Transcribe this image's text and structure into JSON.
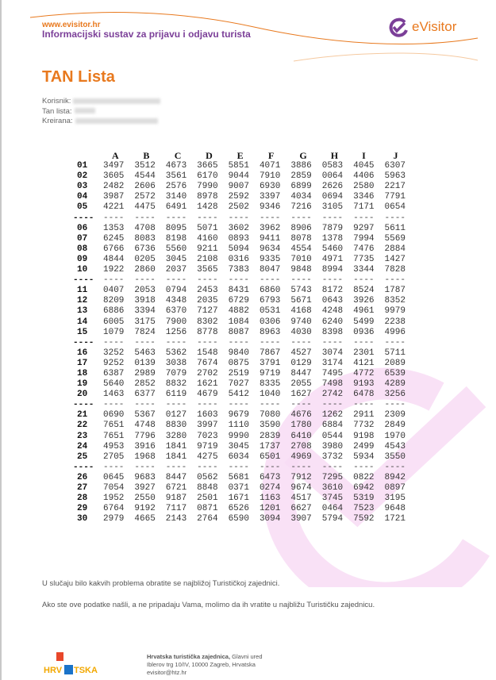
{
  "header": {
    "site": "www.evisitor.hr",
    "subtitle": "Informacijski sustav za prijavu i odjavu turista",
    "logo_text": "eVisitor"
  },
  "title": "TAN Lista",
  "meta": {
    "korisnik_label": "Korisnik:",
    "tan_lista_label": "Tan lista:",
    "kreirana_label": "Kreirana:"
  },
  "table": {
    "columns": [
      "A",
      "B",
      "C",
      "D",
      "E",
      "F",
      "G",
      "H",
      "I",
      "J"
    ],
    "groups": [
      [
        [
          "01",
          [
            "3497",
            "3512",
            "4673",
            "3665",
            "5851",
            "4071",
            "3886",
            "0583",
            "4045",
            "6307"
          ]
        ],
        [
          "02",
          [
            "3605",
            "4544",
            "3561",
            "6170",
            "9044",
            "7910",
            "2859",
            "0064",
            "4406",
            "5963"
          ]
        ],
        [
          "03",
          [
            "2482",
            "2606",
            "2576",
            "7990",
            "9007",
            "6930",
            "6899",
            "2626",
            "2580",
            "2217"
          ]
        ],
        [
          "04",
          [
            "3987",
            "2572",
            "3140",
            "8978",
            "2592",
            "3397",
            "4034",
            "0694",
            "3346",
            "7791"
          ]
        ],
        [
          "05",
          [
            "4221",
            "4475",
            "6491",
            "1428",
            "2502",
            "9346",
            "7216",
            "3105",
            "7171",
            "0654"
          ]
        ]
      ],
      [
        [
          "06",
          [
            "1353",
            "4708",
            "8095",
            "5071",
            "3602",
            "3962",
            "8906",
            "7879",
            "9297",
            "5611"
          ]
        ],
        [
          "07",
          [
            "6245",
            "8083",
            "8198",
            "4160",
            "0893",
            "9411",
            "8078",
            "1378",
            "7994",
            "5569"
          ]
        ],
        [
          "08",
          [
            "6766",
            "6736",
            "5560",
            "9211",
            "5094",
            "9634",
            "4554",
            "5460",
            "7476",
            "2884"
          ]
        ],
        [
          "09",
          [
            "4844",
            "0205",
            "3045",
            "2108",
            "0316",
            "9335",
            "7010",
            "4971",
            "7735",
            "1427"
          ]
        ],
        [
          "10",
          [
            "1922",
            "2860",
            "2037",
            "3565",
            "7383",
            "8047",
            "9848",
            "8994",
            "3344",
            "7828"
          ]
        ]
      ],
      [
        [
          "11",
          [
            "0407",
            "2053",
            "0794",
            "2453",
            "8431",
            "6860",
            "5743",
            "8172",
            "8524",
            "1787"
          ]
        ],
        [
          "12",
          [
            "8209",
            "3918",
            "4348",
            "2035",
            "6729",
            "6793",
            "5671",
            "0643",
            "3926",
            "8352"
          ]
        ],
        [
          "13",
          [
            "6886",
            "3394",
            "6370",
            "7127",
            "4882",
            "0531",
            "4168",
            "4248",
            "4961",
            "9979"
          ]
        ],
        [
          "14",
          [
            "6005",
            "3175",
            "7900",
            "8302",
            "1084",
            "0306",
            "9740",
            "6240",
            "5499",
            "2238"
          ]
        ],
        [
          "15",
          [
            "1079",
            "7824",
            "1256",
            "8778",
            "8087",
            "8963",
            "4030",
            "8398",
            "0936",
            "4996"
          ]
        ]
      ],
      [
        [
          "16",
          [
            "3252",
            "5463",
            "5362",
            "1548",
            "9840",
            "7867",
            "4527",
            "3074",
            "2301",
            "5711"
          ]
        ],
        [
          "17",
          [
            "9252",
            "0139",
            "3038",
            "7674",
            "0875",
            "3791",
            "0129",
            "3174",
            "4121",
            "2089"
          ]
        ],
        [
          "18",
          [
            "6387",
            "2989",
            "7079",
            "2702",
            "2519",
            "9719",
            "8447",
            "7495",
            "4772",
            "6539"
          ]
        ],
        [
          "19",
          [
            "5640",
            "2852",
            "8832",
            "1621",
            "7027",
            "8335",
            "2055",
            "7498",
            "9193",
            "4289"
          ]
        ],
        [
          "20",
          [
            "1463",
            "6377",
            "6119",
            "4679",
            "5412",
            "1040",
            "1627",
            "2742",
            "6478",
            "3256"
          ]
        ]
      ],
      [
        [
          "21",
          [
            "0690",
            "5367",
            "0127",
            "1603",
            "9679",
            "7080",
            "4676",
            "1262",
            "2911",
            "2309"
          ]
        ],
        [
          "22",
          [
            "7651",
            "4748",
            "8830",
            "3997",
            "1110",
            "3590",
            "1780",
            "6884",
            "7732",
            "2849"
          ]
        ],
        [
          "23",
          [
            "7651",
            "7796",
            "3280",
            "7023",
            "9990",
            "2839",
            "6410",
            "0544",
            "9198",
            "1970"
          ]
        ],
        [
          "24",
          [
            "4953",
            "3916",
            "1841",
            "9719",
            "3045",
            "1737",
            "2708",
            "3980",
            "2499",
            "4543"
          ]
        ],
        [
          "25",
          [
            "2705",
            "1968",
            "1841",
            "4275",
            "6034",
            "6501",
            "4969",
            "3732",
            "5934",
            "3550"
          ]
        ]
      ],
      [
        [
          "26",
          [
            "0645",
            "9683",
            "8447",
            "0562",
            "5681",
            "6473",
            "7912",
            "7295",
            "0822",
            "8942"
          ]
        ],
        [
          "27",
          [
            "7054",
            "3927",
            "6721",
            "8848",
            "0371",
            "0274",
            "9674",
            "3610",
            "6942",
            "0897"
          ]
        ],
        [
          "28",
          [
            "1952",
            "2550",
            "9187",
            "2501",
            "1671",
            "1163",
            "4517",
            "3745",
            "5319",
            "3195"
          ]
        ],
        [
          "29",
          [
            "6764",
            "9192",
            "7117",
            "0871",
            "6526",
            "1201",
            "6627",
            "0464",
            "7523",
            "9648"
          ]
        ],
        [
          "30",
          [
            "2979",
            "4665",
            "2143",
            "2764",
            "6590",
            "3094",
            "3907",
            "5794",
            "7592",
            "1721"
          ]
        ]
      ]
    ],
    "separator": "----"
  },
  "messages": [
    "U slučaju bilo kakvih problema obratite se najbližoj Turističkoj zajednici.",
    "Ako ste ove podatke našli, a ne pripadaju Vama, molimo da ih vratite u najbližu Turističku zajednicu."
  ],
  "footer": {
    "org": "Hrvatska turistička zajednica,",
    "office": " Glavni ured",
    "address": "Iblerov trg 10/IV,  10000 Zagreb, Hrvatska",
    "email": "evisitor@htz.hr",
    "logo_text": "HRVATSKA"
  },
  "colors": {
    "orange": "#e8791e",
    "purple": "#7b3f98",
    "watermark": "#f5d0f0"
  }
}
